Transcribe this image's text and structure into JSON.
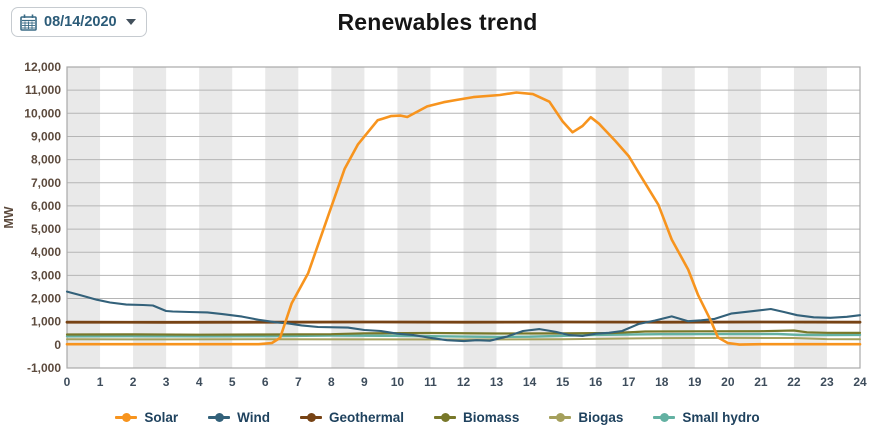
{
  "header": {
    "title": "Renewables trend",
    "date_value": "08/14/2020"
  },
  "chart_data": {
    "type": "line",
    "title": "Renewables trend",
    "xlabel": "",
    "ylabel": "MW",
    "xlim": [
      0,
      24
    ],
    "ylim": [
      -1000,
      12000
    ],
    "x_ticks": [
      0,
      1,
      2,
      3,
      4,
      5,
      6,
      7,
      8,
      9,
      10,
      11,
      12,
      13,
      14,
      15,
      16,
      17,
      18,
      19,
      20,
      21,
      22,
      23,
      24
    ],
    "y_ticks": [
      {
        "value": 12000,
        "label": "12,000"
      },
      {
        "value": 11000,
        "label": "11,000"
      },
      {
        "value": 10000,
        "label": "10,000"
      },
      {
        "value": 9000,
        "label": "9,000"
      },
      {
        "value": 8000,
        "label": "8,000"
      },
      {
        "value": 7000,
        "label": "7,000"
      },
      {
        "value": 6000,
        "label": "6,000"
      },
      {
        "value": 5000,
        "label": "5,000"
      },
      {
        "value": 4000,
        "label": "4,000"
      },
      {
        "value": 3000,
        "label": "3,000"
      },
      {
        "value": 2000,
        "label": "2,000"
      },
      {
        "value": 1000,
        "label": "1,000"
      },
      {
        "value": 0,
        "label": "0"
      },
      {
        "value": -1000,
        "label": "-1,000"
      }
    ],
    "grid": {
      "horizontal_gridlines": true,
      "alternating_hour_bands": true
    },
    "legend_position": "bottom",
    "band_color": "#e9e9e9",
    "grid_color": "#b5b5b5",
    "border_color": "#a9a9a9",
    "series": [
      {
        "name": "Solar",
        "color": "#f7941e",
        "width": 2.6,
        "points": [
          [
            0,
            30
          ],
          [
            1,
            30
          ],
          [
            2,
            30
          ],
          [
            3,
            30
          ],
          [
            4,
            30
          ],
          [
            5,
            30
          ],
          [
            5.8,
            30
          ],
          [
            6.2,
            80
          ],
          [
            6.45,
            300
          ],
          [
            6.8,
            1800
          ],
          [
            7.3,
            3100
          ],
          [
            7.9,
            5550
          ],
          [
            8.4,
            7600
          ],
          [
            8.8,
            8650
          ],
          [
            9.4,
            9700
          ],
          [
            9.8,
            9880
          ],
          [
            10.1,
            9900
          ],
          [
            10.3,
            9840
          ],
          [
            10.9,
            10300
          ],
          [
            11.4,
            10480
          ],
          [
            11.8,
            10580
          ],
          [
            12.3,
            10700
          ],
          [
            13.1,
            10790
          ],
          [
            13.6,
            10900
          ],
          [
            14.1,
            10830
          ],
          [
            14.6,
            10500
          ],
          [
            15.0,
            9650
          ],
          [
            15.3,
            9180
          ],
          [
            15.6,
            9450
          ],
          [
            15.85,
            9830
          ],
          [
            16.1,
            9550
          ],
          [
            16.6,
            8800
          ],
          [
            17.0,
            8150
          ],
          [
            17.3,
            7440
          ],
          [
            17.9,
            6050
          ],
          [
            18.3,
            4550
          ],
          [
            18.8,
            3250
          ],
          [
            19.1,
            2150
          ],
          [
            19.5,
            1000
          ],
          [
            19.7,
            320
          ],
          [
            20.0,
            80
          ],
          [
            20.35,
            10
          ],
          [
            21,
            30
          ],
          [
            22,
            30
          ],
          [
            23,
            30
          ],
          [
            24,
            30
          ]
        ]
      },
      {
        "name": "Wind",
        "color": "#33617a",
        "width": 2.1,
        "points": [
          [
            0,
            2300
          ],
          [
            0.4,
            2150
          ],
          [
            0.9,
            1950
          ],
          [
            1.3,
            1830
          ],
          [
            1.8,
            1740
          ],
          [
            2.3,
            1720
          ],
          [
            2.6,
            1700
          ],
          [
            3.0,
            1460
          ],
          [
            3.2,
            1440
          ],
          [
            3.7,
            1420
          ],
          [
            4.25,
            1400
          ],
          [
            4.7,
            1330
          ],
          [
            5.3,
            1220
          ],
          [
            5.8,
            1080
          ],
          [
            6.3,
            980
          ],
          [
            6.7,
            920
          ],
          [
            7.1,
            840
          ],
          [
            7.6,
            770
          ],
          [
            8.5,
            745
          ],
          [
            9.0,
            640
          ],
          [
            9.5,
            600
          ],
          [
            10.0,
            480
          ],
          [
            10.5,
            420
          ],
          [
            11.0,
            300
          ],
          [
            11.5,
            200
          ],
          [
            12.0,
            160
          ],
          [
            12.4,
            200
          ],
          [
            12.8,
            180
          ],
          [
            13.3,
            350
          ],
          [
            13.8,
            600
          ],
          [
            14.3,
            680
          ],
          [
            14.8,
            560
          ],
          [
            15.2,
            420
          ],
          [
            15.6,
            380
          ],
          [
            16.0,
            480
          ],
          [
            16.4,
            520
          ],
          [
            16.8,
            600
          ],
          [
            17.3,
            900
          ],
          [
            17.8,
            1050
          ],
          [
            18.3,
            1230
          ],
          [
            18.8,
            1020
          ],
          [
            19.2,
            1060
          ],
          [
            19.6,
            1120
          ],
          [
            20.1,
            1350
          ],
          [
            20.6,
            1430
          ],
          [
            21.3,
            1550
          ],
          [
            21.7,
            1420
          ],
          [
            22.1,
            1280
          ],
          [
            22.6,
            1190
          ],
          [
            23.1,
            1170
          ],
          [
            23.6,
            1210
          ],
          [
            24,
            1280
          ]
        ]
      },
      {
        "name": "Geothermal",
        "color": "#774315",
        "width": 2.8,
        "points": [
          [
            0,
            980
          ],
          [
            3,
            975
          ],
          [
            6,
            980
          ],
          [
            9,
            985
          ],
          [
            12,
            980
          ],
          [
            15,
            985
          ],
          [
            18,
            980
          ],
          [
            21,
            985
          ],
          [
            24,
            980
          ]
        ]
      },
      {
        "name": "Biomass",
        "color": "#78782a",
        "width": 2.2,
        "points": [
          [
            0,
            445
          ],
          [
            2,
            450
          ],
          [
            4,
            440
          ],
          [
            6,
            445
          ],
          [
            8,
            460
          ],
          [
            9,
            500
          ],
          [
            11,
            510
          ],
          [
            13,
            490
          ],
          [
            15,
            495
          ],
          [
            16.5,
            510
          ],
          [
            17.5,
            575
          ],
          [
            19,
            585
          ],
          [
            21,
            590
          ],
          [
            22,
            620
          ],
          [
            22.4,
            540
          ],
          [
            23,
            520
          ],
          [
            24,
            515
          ]
        ]
      },
      {
        "name": "Biogas",
        "color": "#a5a05c",
        "width": 2.0,
        "points": [
          [
            0,
            240
          ],
          [
            3,
            235
          ],
          [
            6,
            240
          ],
          [
            9,
            235
          ],
          [
            12,
            230
          ],
          [
            15,
            240
          ],
          [
            18,
            290
          ],
          [
            20,
            300
          ],
          [
            22,
            295
          ],
          [
            23,
            250
          ],
          [
            24,
            245
          ]
        ]
      },
      {
        "name": "Small hydro",
        "color": "#63b1a2",
        "width": 2.4,
        "points": [
          [
            0,
            370
          ],
          [
            2,
            375
          ],
          [
            4,
            370
          ],
          [
            6,
            375
          ],
          [
            8,
            400
          ],
          [
            10,
            390
          ],
          [
            12,
            355
          ],
          [
            13,
            345
          ],
          [
            14,
            350
          ],
          [
            16,
            430
          ],
          [
            18,
            460
          ],
          [
            20,
            465
          ],
          [
            21.5,
            470
          ],
          [
            22.2,
            430
          ],
          [
            23,
            425
          ],
          [
            24,
            430
          ]
        ]
      }
    ]
  }
}
